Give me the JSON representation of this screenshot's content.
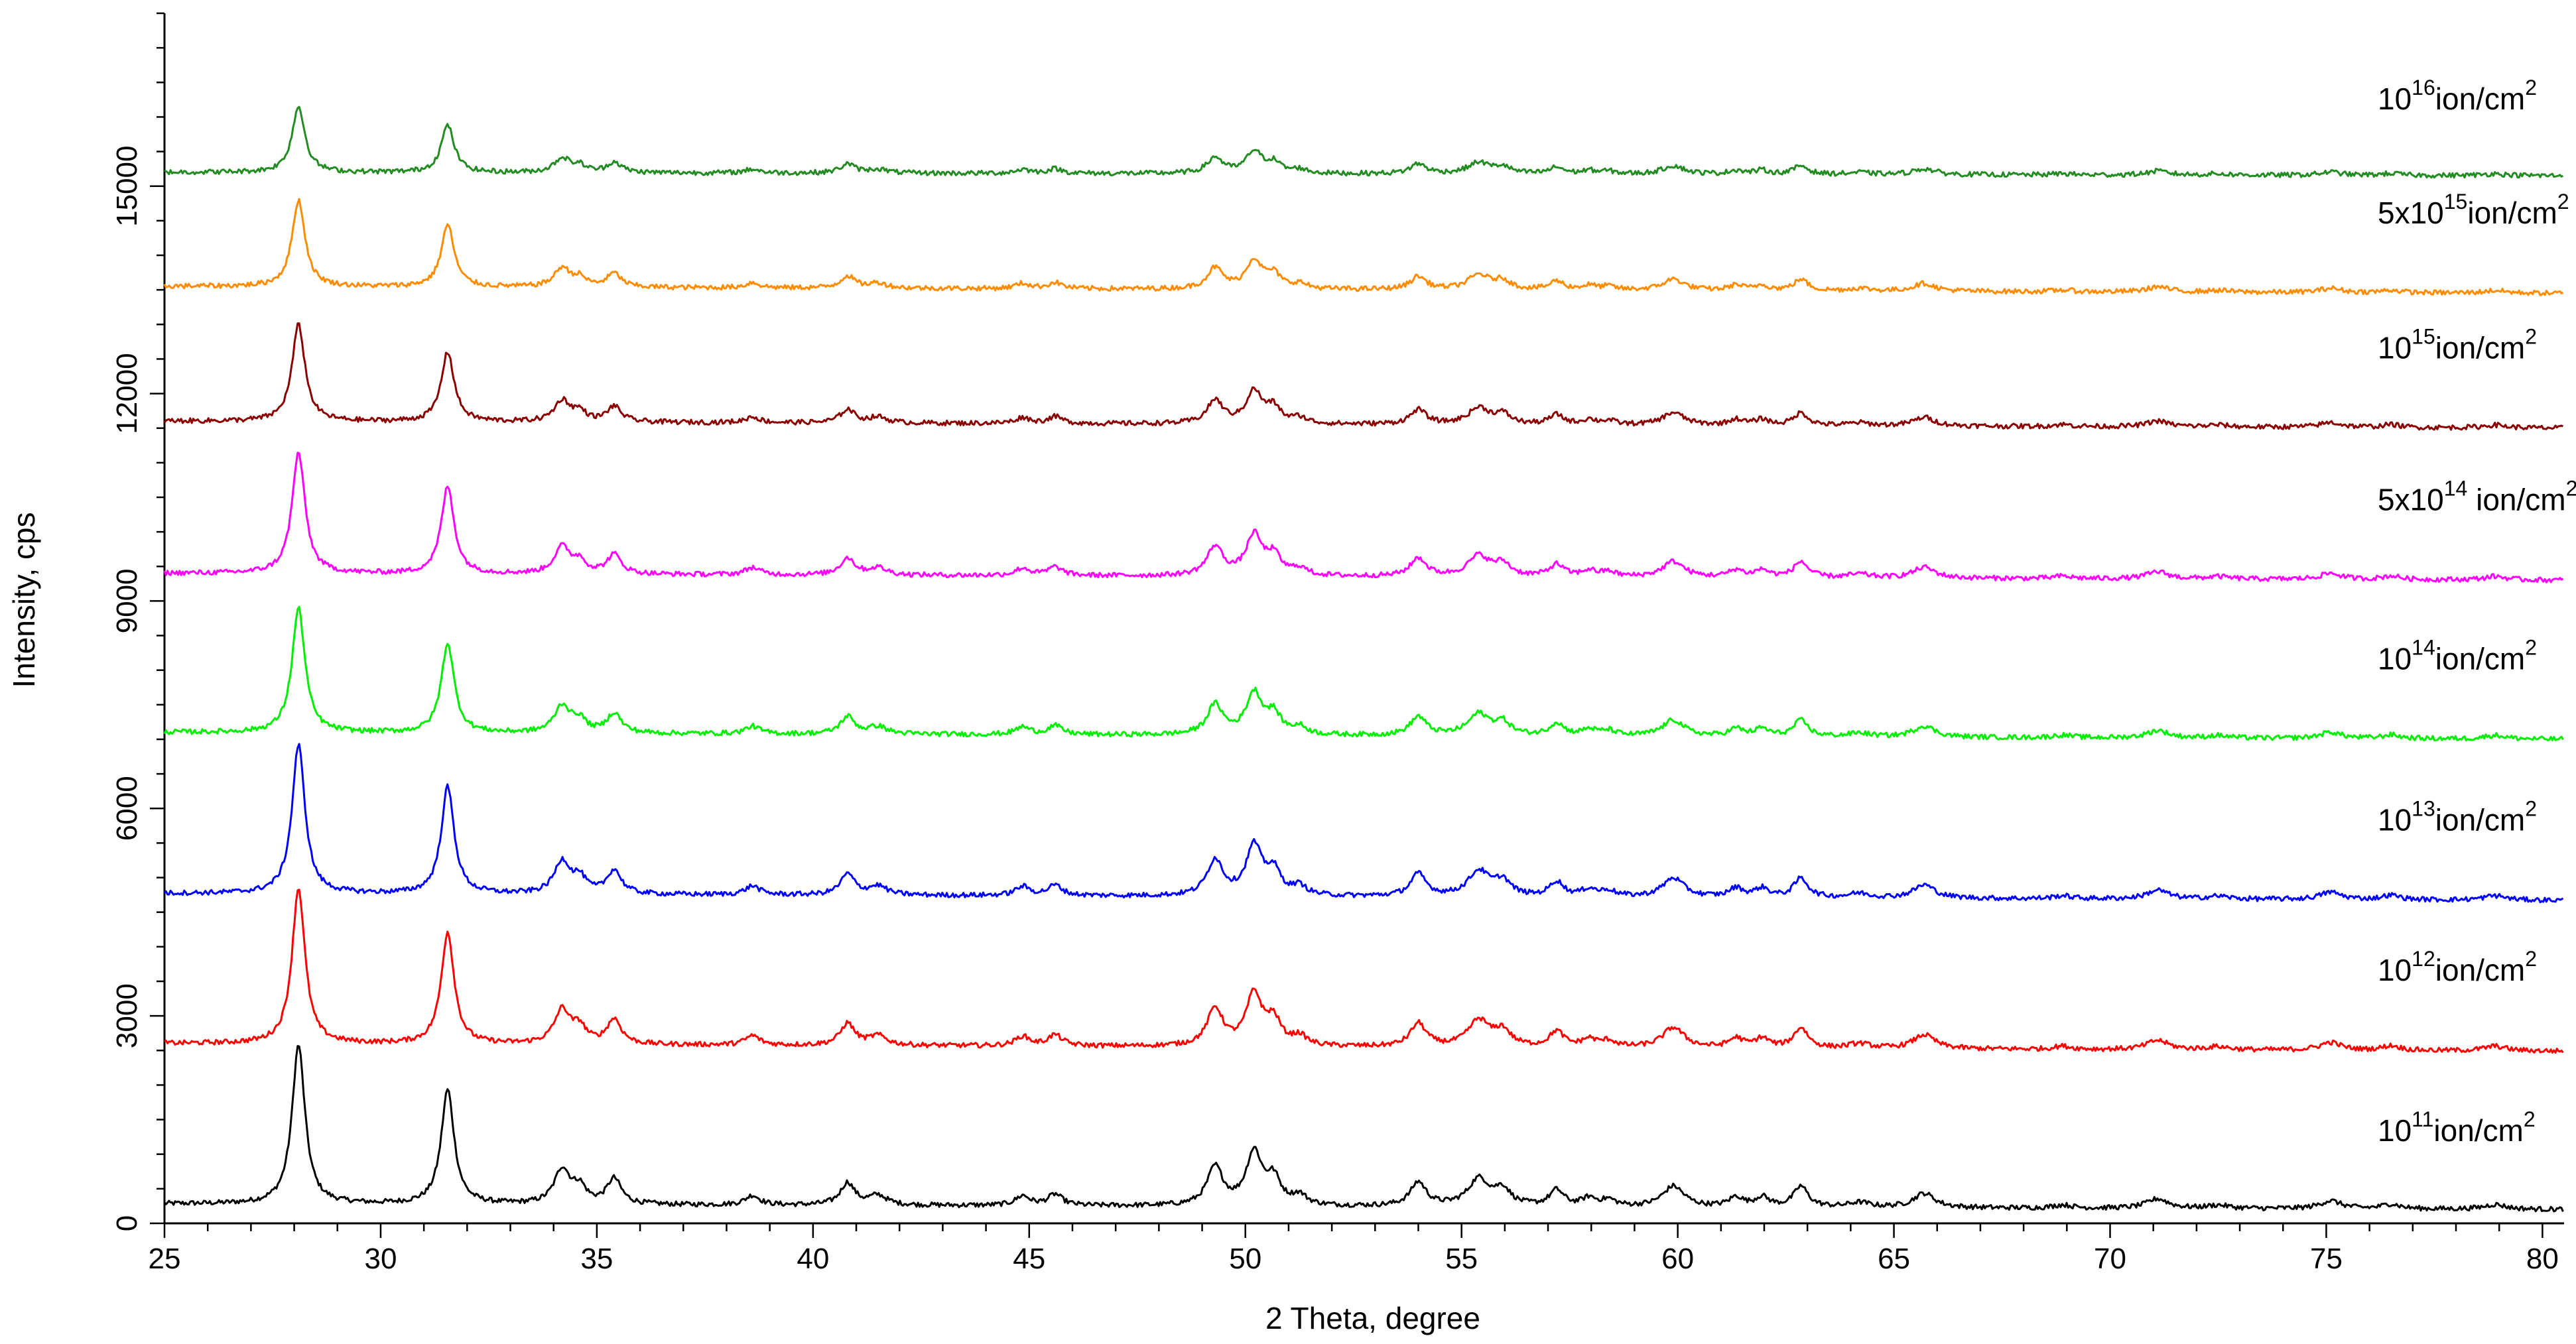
{
  "chart_data": {
    "type": "line",
    "title": "",
    "xlabel": "2 Theta, degree",
    "ylabel": "Intensity, cps",
    "xlim": [
      25,
      80.5
    ],
    "ylim": [
      0,
      17500
    ],
    "x_ticks": [
      25,
      30,
      35,
      40,
      45,
      50,
      55,
      60,
      65,
      70,
      75,
      80
    ],
    "y_ticks": [
      0,
      3000,
      6000,
      9000,
      12000,
      15000
    ],
    "grid": false,
    "legend": "none",
    "peaks": [
      {
        "x": 28.1,
        "w": 0.18,
        "h": 1.0
      },
      {
        "x": 31.55,
        "w": 0.18,
        "h": 0.72
      },
      {
        "x": 34.2,
        "w": 0.22,
        "h": 0.22
      },
      {
        "x": 34.6,
        "w": 0.18,
        "h": 0.1
      },
      {
        "x": 35.4,
        "w": 0.2,
        "h": 0.16
      },
      {
        "x": 38.6,
        "w": 0.2,
        "h": 0.06
      },
      {
        "x": 40.8,
        "w": 0.2,
        "h": 0.14
      },
      {
        "x": 41.5,
        "w": 0.25,
        "h": 0.06
      },
      {
        "x": 44.85,
        "w": 0.2,
        "h": 0.06
      },
      {
        "x": 45.6,
        "w": 0.2,
        "h": 0.07
      },
      {
        "x": 49.3,
        "w": 0.22,
        "h": 0.24
      },
      {
        "x": 50.2,
        "w": 0.22,
        "h": 0.33
      },
      {
        "x": 50.65,
        "w": 0.2,
        "h": 0.16
      },
      {
        "x": 51.25,
        "w": 0.2,
        "h": 0.06
      },
      {
        "x": 54.0,
        "w": 0.22,
        "h": 0.15
      },
      {
        "x": 55.4,
        "w": 0.3,
        "h": 0.17
      },
      {
        "x": 55.95,
        "w": 0.22,
        "h": 0.1
      },
      {
        "x": 57.2,
        "w": 0.2,
        "h": 0.1
      },
      {
        "x": 57.95,
        "w": 0.2,
        "h": 0.05
      },
      {
        "x": 58.4,
        "w": 0.2,
        "h": 0.04
      },
      {
        "x": 59.9,
        "w": 0.3,
        "h": 0.13
      },
      {
        "x": 61.35,
        "w": 0.2,
        "h": 0.06
      },
      {
        "x": 61.95,
        "w": 0.2,
        "h": 0.06
      },
      {
        "x": 62.85,
        "w": 0.2,
        "h": 0.13
      },
      {
        "x": 64.2,
        "w": 0.3,
        "h": 0.03
      },
      {
        "x": 65.7,
        "w": 0.3,
        "h": 0.09
      },
      {
        "x": 68.9,
        "w": 0.25,
        "h": 0.02
      },
      {
        "x": 71.1,
        "w": 0.3,
        "h": 0.06
      },
      {
        "x": 72.5,
        "w": 0.3,
        "h": 0.02
      },
      {
        "x": 75.1,
        "w": 0.3,
        "h": 0.05
      },
      {
        "x": 76.5,
        "w": 0.25,
        "h": 0.03
      },
      {
        "x": 78.9,
        "w": 0.3,
        "h": 0.03
      }
    ],
    "series": [
      {
        "name": "10^11 ion/cm^2",
        "label_base": "10",
        "label_sup": "11",
        "label_mid": "ion/cm",
        "label_sup2": "2",
        "color": "#000000",
        "offset": 280,
        "peak_height": 2300,
        "end_offset": 200
      },
      {
        "name": "10^12 ion/cm^2",
        "label_base": "10",
        "label_sup": "12",
        "label_mid": "ion/cm",
        "label_sup2": "2",
        "color": "#ff0000",
        "offset": 2600,
        "peak_height": 2250,
        "end_offset": 2490
      },
      {
        "name": "10^13 ion/cm^2",
        "label_base": "10",
        "label_sup": "13",
        "label_mid": "ion/cm",
        "label_sup2": "2",
        "color": "#0000ff",
        "offset": 4770,
        "peak_height": 2150,
        "end_offset": 4670
      },
      {
        "name": "10^14 ion/cm^2",
        "label_base": "10",
        "label_sup": "14",
        "label_mid": "ion/cm",
        "label_sup2": "2",
        "color": "#00ee00",
        "offset": 7100,
        "peak_height": 1800,
        "end_offset": 7000
      },
      {
        "name": "5x10^14 ion/cm^2",
        "label_base": "5x10",
        "label_sup": "14",
        "label_mid": " ion/cm",
        "label_sup2": "2",
        "color": "#ff00ff",
        "offset": 9400,
        "peak_height": 1750,
        "end_offset": 9300
      },
      {
        "name": "10^15 ion/cm^2",
        "label_base": "10",
        "label_sup": "15",
        "label_mid": "ion/cm",
        "label_sup2": "2",
        "color": "#8b0000",
        "offset": 11600,
        "peak_height": 1400,
        "end_offset": 11500
      },
      {
        "name": "5x10^15 ion/cm^2",
        "label_base": "5x10",
        "label_sup": "15",
        "label_mid": "ion/cm",
        "label_sup2": "2",
        "color": "#ff8c00",
        "offset": 13550,
        "peak_height": 1250,
        "end_offset": 13450
      },
      {
        "name": "10^16 ion/cm^2",
        "label_base": "10",
        "label_sup": "16",
        "label_mid": "ion/cm",
        "label_sup2": "2",
        "color": "#228b22",
        "offset": 15200,
        "peak_height": 950,
        "end_offset": 15150
      }
    ]
  }
}
